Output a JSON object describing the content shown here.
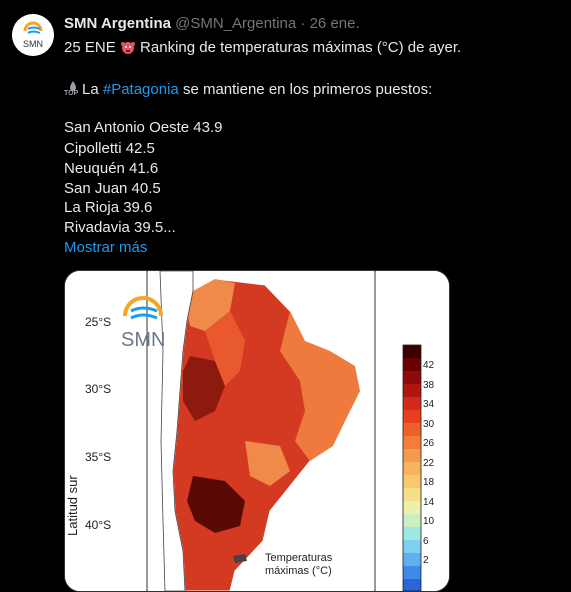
{
  "tweet": {
    "author_name": "SMN Argentina",
    "handle": "@SMN_Argentina",
    "separator": "·",
    "date": "26 ene.",
    "line1_prefix": "25 ENE",
    "line1_suffix": "Ranking de temperaturas máximas (°C) de ayer.",
    "line2_prefix": "La",
    "hashtag": "#Patagonia",
    "line2_suffix": "se mantiene en los primeros puestos:",
    "ranking": [
      "San Antonio Oeste 43.9",
      "Cipolletti 42.5",
      "Neuquén 41.6",
      "San Juan 40.5",
      "La Rioja 39.6",
      "Rivadavia 39.5..."
    ],
    "show_more": "Mostrar más",
    "emoji_top_label": "TOP"
  },
  "map": {
    "logo_text": "SMN",
    "lat_labels": [
      "25°S",
      "30°S",
      "35°S",
      "40°S"
    ],
    "y_axis_label": "Latitud sur",
    "legend_values": [
      "42",
      "38",
      "34",
      "30",
      "26",
      "22",
      "18",
      "14",
      "10",
      "6",
      "2"
    ],
    "caption_line1": "Temperaturas",
    "caption_line2": "máximas (°C)"
  },
  "colors": {
    "background": "#000000",
    "text": "#e7e9ea",
    "muted": "#71767b",
    "link": "#1d9bf0"
  }
}
